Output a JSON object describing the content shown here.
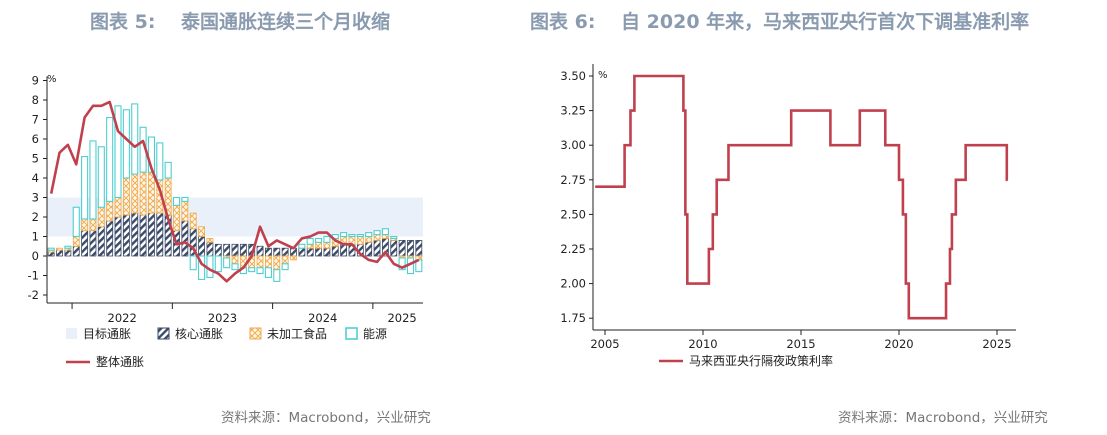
{
  "colors": {
    "title": "#8a9bb0",
    "headline": "#c0404d",
    "band": "#e9f0f9",
    "core": "#3b4a66",
    "food": "#f0a94a",
    "energy": "#4fcfcf",
    "policy": "#c0404d"
  },
  "charts": {
    "left": {
      "title": "图表 5:　 泰国通胀连续三个月收缩",
      "source": "资料来源：Macrobond，兴业研究",
      "unit": "%"
    },
    "right": {
      "title": "图表 6:　 自 2020 年来，马来西亚央行首次下调基准利率",
      "source": "资料来源：Macrobond，兴业研究",
      "unit": "%"
    }
  },
  "chart_data": [
    {
      "type": "bar",
      "stacked": true,
      "x_tick_labels": [
        "2022",
        "2023",
        "2024",
        "2025"
      ],
      "ylim": [
        -2,
        9
      ],
      "y_ticks": [
        -2,
        -1,
        0,
        1,
        2,
        3,
        4,
        5,
        6,
        7,
        8,
        9
      ],
      "unit": "%",
      "target_band": {
        "name": "目标通胀",
        "range": [
          1,
          3
        ]
      },
      "legend": [
        "目标通胀",
        "核心通胀",
        "未加工食品",
        "能源",
        "整体通胀"
      ],
      "months": [
        "2021-10",
        "2021-11",
        "2021-12",
        "2022-01",
        "2022-02",
        "2022-03",
        "2022-04",
        "2022-05",
        "2022-06",
        "2022-07",
        "2022-08",
        "2022-09",
        "2022-10",
        "2022-11",
        "2022-12",
        "2023-01",
        "2023-02",
        "2023-03",
        "2023-04",
        "2023-05",
        "2023-06",
        "2023-07",
        "2023-08",
        "2023-09",
        "2023-10",
        "2023-11",
        "2023-12",
        "2024-01",
        "2024-02",
        "2024-03",
        "2024-04",
        "2024-05",
        "2024-06",
        "2024-07",
        "2024-08",
        "2024-09",
        "2024-10",
        "2024-11",
        "2024-12",
        "2025-01",
        "2025-02",
        "2025-03",
        "2025-04",
        "2025-05",
        "2025-06"
      ],
      "series": [
        {
          "name": "核心通胀",
          "values": [
            0.2,
            0.3,
            0.3,
            0.5,
            1.3,
            1.3,
            1.5,
            1.8,
            2.0,
            2.1,
            2.2,
            2.1,
            2.2,
            2.2,
            2.1,
            1.3,
            1.8,
            1.4,
            1.0,
            0.7,
            0.6,
            0.6,
            0.6,
            0.6,
            0.6,
            0.5,
            0.4,
            0.4,
            0.4,
            0.4,
            0.4,
            0.4,
            0.4,
            0.4,
            0.5,
            0.6,
            0.6,
            0.6,
            0.7,
            0.8,
            0.9,
            0.8,
            0.8,
            0.8,
            0.8
          ]
        },
        {
          "name": "未加工食品",
          "values": [
            0.1,
            0.1,
            0.1,
            0.5,
            0.6,
            0.6,
            1.0,
            1.0,
            1.0,
            1.9,
            2.0,
            2.2,
            2.1,
            1.7,
            1.9,
            1.3,
            1.0,
            0.8,
            0.5,
            0.2,
            0.0,
            -0.1,
            -0.4,
            -0.6,
            -0.6,
            -0.6,
            -0.6,
            -0.7,
            -0.4,
            -0.2,
            0.0,
            0.2,
            0.3,
            0.3,
            0.4,
            0.4,
            0.4,
            0.4,
            0.3,
            0.3,
            0.2,
            0.1,
            -0.1,
            -0.1,
            -0.2
          ]
        },
        {
          "name": "能源",
          "values": [
            0.1,
            0.0,
            0.1,
            1.5,
            3.2,
            4.0,
            3.1,
            4.3,
            4.7,
            3.5,
            3.6,
            2.3,
            1.8,
            1.9,
            0.8,
            0.4,
            0.2,
            -0.7,
            -1.2,
            -1.1,
            -0.8,
            -0.5,
            -0.3,
            -0.3,
            -0.2,
            -0.3,
            -0.5,
            -0.6,
            -0.3,
            0.0,
            0.2,
            0.3,
            0.2,
            0.3,
            0.2,
            0.2,
            0.1,
            0.1,
            0.2,
            0.2,
            0.3,
            0.1,
            -0.6,
            -0.8,
            -0.6
          ]
        },
        {
          "name": "整体通胀",
          "type": "line",
          "values": [
            3.2,
            5.3,
            5.7,
            4.7,
            7.1,
            7.7,
            7.7,
            7.9,
            6.4,
            6.0,
            5.6,
            5.9,
            4.5,
            3.4,
            1.9,
            0.6,
            0.7,
            0.4,
            -0.4,
            -0.7,
            -0.9,
            -1.3,
            -0.9,
            -0.6,
            0.0,
            1.5,
            0.5,
            0.8,
            0.6,
            0.4,
            0.9,
            1.0,
            1.2,
            1.2,
            0.8,
            0.6,
            0.6,
            0.1,
            -0.2,
            -0.3,
            0.2,
            -0.4,
            -0.6,
            -0.4,
            -0.2
          ]
        }
      ]
    },
    {
      "type": "line",
      "x_tick_labels": [
        "2005",
        "2010",
        "2015",
        "2020",
        "2025"
      ],
      "xlim": [
        2004.5,
        2025.7
      ],
      "ylim": [
        1.625,
        3.55
      ],
      "y_ticks": [
        1.75,
        2.0,
        2.25,
        2.5,
        2.75,
        3.0,
        3.25,
        3.5
      ],
      "unit": "%",
      "legend": [
        "马来西亚央行隔夜政策利率"
      ],
      "series": [
        {
          "name": "马来西亚央行隔夜政策利率",
          "steps": [
            [
              2004.5,
              2.7
            ],
            [
              2006.0,
              3.0
            ],
            [
              2006.3,
              3.25
            ],
            [
              2006.5,
              3.5
            ],
            [
              2009.0,
              3.25
            ],
            [
              2009.1,
              2.5
            ],
            [
              2009.2,
              2.0
            ],
            [
              2010.3,
              2.25
            ],
            [
              2010.5,
              2.5
            ],
            [
              2010.7,
              2.75
            ],
            [
              2011.3,
              3.0
            ],
            [
              2014.5,
              3.25
            ],
            [
              2016.5,
              3.0
            ],
            [
              2018.0,
              3.25
            ],
            [
              2019.3,
              3.0
            ],
            [
              2020.0,
              2.75
            ],
            [
              2020.2,
              2.5
            ],
            [
              2020.35,
              2.0
            ],
            [
              2020.5,
              1.75
            ],
            [
              2022.4,
              2.0
            ],
            [
              2022.6,
              2.25
            ],
            [
              2022.7,
              2.5
            ],
            [
              2022.9,
              2.75
            ],
            [
              2023.4,
              3.0
            ],
            [
              2025.5,
              2.75
            ]
          ],
          "end_x": 2025.55
        }
      ]
    }
  ]
}
